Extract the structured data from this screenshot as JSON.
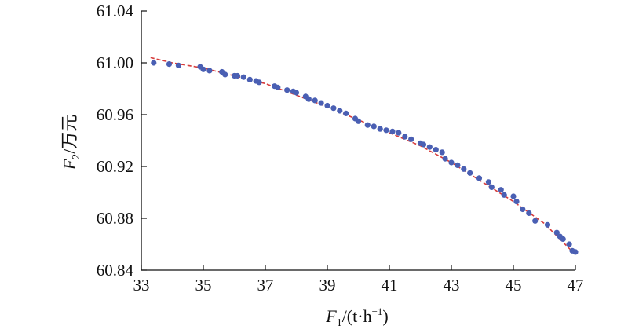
{
  "chart_data": {
    "type": "scatter",
    "title": "",
    "xlabel": {
      "var": "F",
      "sub": "1",
      "unit_pre": "/(t·h",
      "unit_sup": "−1",
      "unit_post": ")"
    },
    "ylabel": {
      "var": "F",
      "sub": "2",
      "unit": "/万元"
    },
    "xlim": [
      33,
      47
    ],
    "ylim": [
      60.84,
      61.04
    ],
    "x_ticks": [
      "33",
      "35",
      "37",
      "39",
      "41",
      "43",
      "45",
      "47"
    ],
    "y_ticks": [
      "60.84",
      "60.88",
      "60.92",
      "60.96",
      "61.00",
      "61.04"
    ],
    "grid": false,
    "legend": "none",
    "colors": {
      "points": "#4a5fb3",
      "fit_line": "#d63b3b",
      "axis": "#111111"
    },
    "series": [
      {
        "kind": "points",
        "points": [
          [
            33.4,
            61.0
          ],
          [
            33.9,
            60.999
          ],
          [
            34.2,
            60.998
          ],
          [
            34.9,
            60.997
          ],
          [
            35.0,
            60.995
          ],
          [
            35.2,
            60.994
          ],
          [
            35.6,
            60.993
          ],
          [
            35.7,
            60.991
          ],
          [
            36.0,
            60.99
          ],
          [
            36.1,
            60.99
          ],
          [
            36.3,
            60.989
          ],
          [
            36.5,
            60.987
          ],
          [
            36.7,
            60.986
          ],
          [
            36.8,
            60.985
          ],
          [
            37.3,
            60.982
          ],
          [
            37.4,
            60.981
          ],
          [
            37.7,
            60.979
          ],
          [
            37.9,
            60.978
          ],
          [
            38.0,
            60.977
          ],
          [
            38.3,
            60.974
          ],
          [
            38.4,
            60.972
          ],
          [
            38.6,
            60.971
          ],
          [
            38.8,
            60.969
          ],
          [
            39.0,
            60.967
          ],
          [
            39.2,
            60.965
          ],
          [
            39.4,
            60.963
          ],
          [
            39.6,
            60.961
          ],
          [
            39.9,
            60.957
          ],
          [
            40.0,
            60.955
          ],
          [
            40.3,
            60.952
          ],
          [
            40.5,
            60.951
          ],
          [
            40.7,
            60.949
          ],
          [
            40.9,
            60.948
          ],
          [
            41.1,
            60.947
          ],
          [
            41.3,
            60.946
          ],
          [
            41.5,
            60.943
          ],
          [
            41.7,
            60.941
          ],
          [
            42.0,
            60.938
          ],
          [
            42.1,
            60.937
          ],
          [
            42.3,
            60.935
          ],
          [
            42.5,
            60.933
          ],
          [
            42.7,
            60.931
          ],
          [
            42.8,
            60.926
          ],
          [
            43.0,
            60.923
          ],
          [
            43.2,
            60.921
          ],
          [
            43.4,
            60.918
          ],
          [
            43.6,
            60.915
          ],
          [
            43.9,
            60.911
          ],
          [
            44.2,
            60.908
          ],
          [
            44.3,
            60.904
          ],
          [
            44.6,
            60.902
          ],
          [
            44.7,
            60.898
          ],
          [
            45.0,
            60.897
          ],
          [
            45.1,
            60.893
          ],
          [
            45.3,
            60.887
          ],
          [
            45.5,
            60.884
          ],
          [
            45.7,
            60.878
          ],
          [
            46.1,
            60.875
          ],
          [
            46.4,
            60.869
          ],
          [
            46.5,
            60.866
          ],
          [
            46.6,
            60.864
          ],
          [
            46.8,
            60.86
          ],
          [
            46.9,
            60.855
          ],
          [
            47.0,
            60.854
          ]
        ]
      },
      {
        "kind": "fit_line",
        "points": [
          [
            33.3,
            61.004
          ],
          [
            34.0,
            61.0
          ],
          [
            35.0,
            60.996
          ],
          [
            36.0,
            60.99
          ],
          [
            37.0,
            60.984
          ],
          [
            38.0,
            60.975
          ],
          [
            39.0,
            60.966
          ],
          [
            40.0,
            60.956
          ],
          [
            41.0,
            60.946
          ],
          [
            42.0,
            60.936
          ],
          [
            43.0,
            60.923
          ],
          [
            44.0,
            60.908
          ],
          [
            45.0,
            60.893
          ],
          [
            46.0,
            60.876
          ],
          [
            47.0,
            60.852
          ]
        ]
      }
    ]
  }
}
